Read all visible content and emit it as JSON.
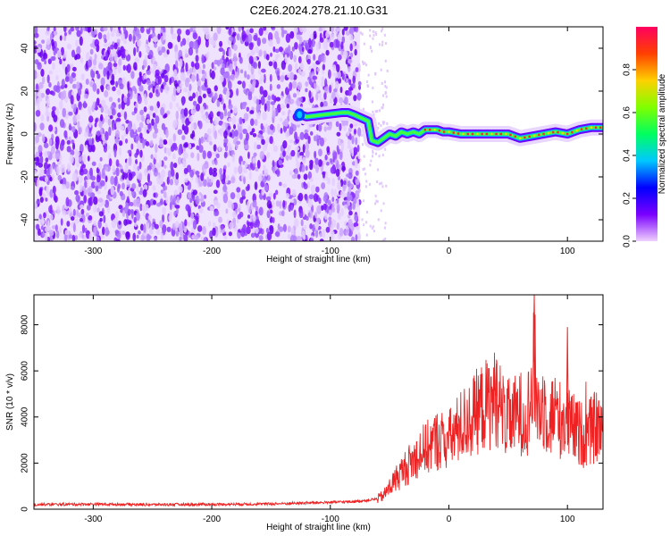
{
  "title": "C2E6.2024.278.21.10.G31",
  "chart_data": [
    {
      "type": "heatmap",
      "xlabel": "Height of straight line (km)",
      "ylabel": "Frequency (Hz)",
      "xlim": [
        -350,
        130
      ],
      "ylim": [
        -50,
        50
      ],
      "xticks": [
        -300,
        -200,
        -100,
        0,
        100
      ],
      "yticks": [
        -40,
        -20,
        0,
        20,
        40
      ],
      "noise_region_x": [
        -350,
        -75
      ],
      "signal_track": {
        "x": [
          -128,
          -125,
          -120,
          -90,
          -85,
          -80,
          -72,
          -68,
          -65,
          -60,
          -55,
          -50,
          -45,
          -40,
          -35,
          -30,
          -25,
          -20,
          -10,
          -5,
          0,
          10,
          20,
          30,
          40,
          50,
          55,
          60,
          70,
          80,
          90,
          100,
          105,
          110,
          120,
          130
        ],
        "freq": [
          8,
          9,
          8,
          10,
          10,
          9,
          7,
          6,
          -3,
          -4,
          -2,
          0,
          -1,
          1,
          0,
          1,
          0,
          2,
          2,
          1,
          1,
          0,
          0,
          0,
          0,
          0,
          -1,
          -2,
          -1,
          0,
          1,
          0,
          1,
          2,
          3,
          3
        ]
      },
      "colorbar": {
        "label": "Normalized spectral amplitude",
        "ticks": [
          0.0,
          0.2,
          0.4,
          0.6,
          0.8
        ],
        "range": [
          0,
          1
        ],
        "colors": [
          "#f0d0ff",
          "#7a00ff",
          "#0000ff",
          "#00c8ff",
          "#00ff60",
          "#80ff00",
          "#ffd000",
          "#ff4000",
          "#ff0060"
        ]
      },
      "grid": false
    },
    {
      "type": "line",
      "xlabel": "Height of straight line (km)",
      "ylabel": "SNR (10 * v/v)",
      "xlim": [
        -350,
        130
      ],
      "ylim": [
        0,
        9300
      ],
      "xticks": [
        -300,
        -200,
        -100,
        0,
        100
      ],
      "yticks": [
        0,
        2000,
        4000,
        6000,
        8000
      ],
      "color": "#ee2222",
      "series": [
        {
          "x": [
            -350,
            -300,
            -250,
            -200,
            -150,
            -100,
            -80,
            -70,
            -60,
            -55,
            -50,
            -45,
            -40,
            -35,
            -30,
            -25,
            -20,
            -15,
            -10,
            -5,
            0,
            5,
            10,
            15,
            20,
            25,
            30,
            35,
            40,
            45,
            50,
            55,
            60,
            65,
            70,
            72,
            75,
            80,
            85,
            90,
            95,
            100,
            105,
            110,
            115,
            120,
            125,
            130
          ],
          "values": [
            200,
            220,
            200,
            210,
            230,
            300,
            330,
            380,
            450,
            600,
            950,
            1300,
            1600,
            1900,
            2100,
            2500,
            2600,
            2800,
            3000,
            3000,
            3000,
            3300,
            3600,
            3800,
            4000,
            4300,
            4500,
            4600,
            4900,
            4200,
            3900,
            4000,
            4200,
            4000,
            4900,
            6400,
            4300,
            4500,
            4000,
            4200,
            3800,
            3700,
            3500,
            3300,
            3200,
            3400,
            3600,
            3500
          ]
        }
      ],
      "annotations": [
        {
          "x": 40,
          "y": 6300
        },
        {
          "x": 72,
          "y": 9300
        },
        {
          "x": 100,
          "y": 7900
        }
      ],
      "grid": false
    }
  ]
}
